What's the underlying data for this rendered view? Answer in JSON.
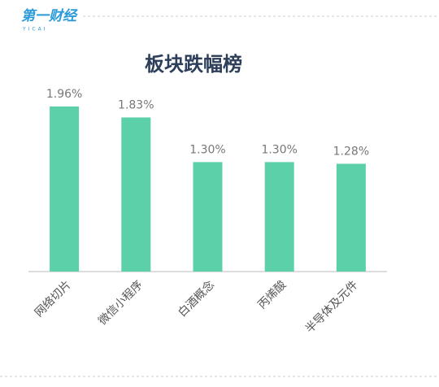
{
  "logo": "第一财经",
  "logo_sub": "YICAI",
  "chart_data": {
    "type": "bar",
    "title": "板块跌幅榜",
    "categories": [
      "网络切片",
      "微信小程序",
      "白酒概念",
      "丙烯酸",
      "半导体及元件"
    ],
    "values": [
      1.96,
      1.83,
      1.3,
      1.3,
      1.28
    ],
    "value_labels": [
      "1.96%",
      "1.83%",
      "1.30%",
      "1.30%",
      "1.28%"
    ],
    "color": "#5cd0a8"
  }
}
